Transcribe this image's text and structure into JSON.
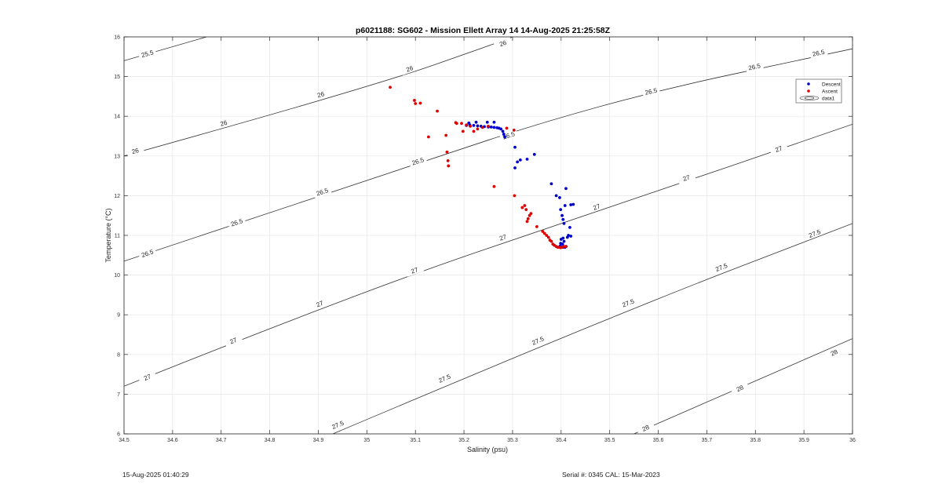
{
  "chart_data": {
    "type": "scatter",
    "title": "p6021188: SG602 - Mission Ellett Array 14 14-Aug-2025 21:25:58Z",
    "xlabel": "Salinity (psu)",
    "ylabel": "Temperature (°C)",
    "xlim": [
      34.5,
      36
    ],
    "ylim": [
      6,
      16
    ],
    "xticks": [
      "34.5",
      "34.6",
      "34.7",
      "34.8",
      "34.9",
      "35",
      "35.1",
      "35.2",
      "35.3",
      "35.4",
      "35.5",
      "35.6",
      "35.7",
      "35.8",
      "35.9",
      "36"
    ],
    "yticks": [
      "6",
      "7",
      "8",
      "9",
      "10",
      "11",
      "12",
      "13",
      "14",
      "15",
      "16"
    ],
    "grid": true,
    "legend_position": "top-right",
    "legend": [
      "Descent",
      "Ascent",
      "data1"
    ],
    "colors": {
      "descent": "#0000cc",
      "ascent": "#dd0000",
      "contour": "#333333",
      "grid": "#e6e6e6"
    },
    "series": [
      {
        "name": "Descent",
        "x": [
          35.205,
          35.212,
          35.22,
          35.228,
          35.235,
          35.242,
          35.25,
          35.256,
          35.262,
          35.268,
          35.272,
          35.276,
          35.28,
          35.282,
          35.284,
          35.262,
          35.248,
          35.225,
          35.21,
          35.305,
          35.31,
          35.316,
          35.33,
          35.345,
          35.305,
          35.38,
          35.39,
          35.397,
          35.399,
          35.402,
          35.404,
          35.406,
          35.408,
          35.41,
          35.404,
          35.42,
          35.425,
          35.4,
          35.399,
          35.398,
          35.4,
          35.402,
          35.405,
          35.408,
          35.41,
          35.413,
          35.415,
          35.418,
          35.42,
          35.406,
          35.403
        ],
        "y": [
          13.77,
          13.78,
          13.77,
          13.76,
          13.75,
          13.74,
          13.73,
          13.73,
          13.72,
          13.71,
          13.7,
          13.68,
          13.62,
          13.55,
          13.48,
          13.85,
          13.85,
          13.85,
          13.83,
          13.22,
          12.85,
          12.9,
          12.92,
          13.04,
          12.7,
          12.3,
          12.0,
          11.95,
          11.65,
          11.5,
          11.4,
          11.3,
          11.75,
          12.18,
          10.93,
          11.77,
          11.78,
          10.9,
          10.8,
          10.73,
          10.7,
          10.7,
          10.7,
          10.7,
          10.72,
          10.95,
          11.0,
          11.2,
          10.98,
          10.85,
          10.78
        ]
      },
      {
        "name": "Ascent",
        "x": [
          35.048,
          35.098,
          35.1,
          35.11,
          35.127,
          35.145,
          35.163,
          35.165,
          35.167,
          35.168,
          35.183,
          35.185,
          35.195,
          35.198,
          35.205,
          35.213,
          35.22,
          35.228,
          35.238,
          35.25,
          35.262,
          35.304,
          35.32,
          35.325,
          35.328,
          35.33,
          35.332,
          35.335,
          35.338,
          35.35,
          35.362,
          35.366,
          35.37,
          35.374,
          35.377,
          35.38,
          35.383,
          35.386,
          35.39,
          35.393,
          35.396,
          35.399,
          35.402,
          35.406,
          35.41,
          35.303,
          35.288
        ],
        "y": [
          14.73,
          14.4,
          14.32,
          14.33,
          13.48,
          14.13,
          13.52,
          13.1,
          12.88,
          12.75,
          13.84,
          13.82,
          13.82,
          13.62,
          13.78,
          13.75,
          13.62,
          13.68,
          13.72,
          13.75,
          12.23,
          12.0,
          11.7,
          11.75,
          11.65,
          11.35,
          11.42,
          11.5,
          11.55,
          11.22,
          11.1,
          11.05,
          11.0,
          10.95,
          10.88,
          10.85,
          10.78,
          10.75,
          10.72,
          10.7,
          10.7,
          10.69,
          10.7,
          10.72,
          10.72,
          13.65,
          13.7
        ]
      }
    ],
    "contours": [
      {
        "label": "25.5",
        "points": [
          [
            34.5,
            15.4
          ],
          [
            34.67,
            16.0
          ]
        ],
        "label_positions": [
          [
            34.548,
            15.58
          ]
        ]
      },
      {
        "label": "26",
        "points": [
          [
            34.5,
            13.0
          ],
          [
            35.0,
            14.7
          ],
          [
            35.28,
            15.9
          ],
          [
            35.3,
            16.0
          ]
        ],
        "label_positions": [
          [
            34.523,
            13.13
          ],
          [
            34.705,
            13.83
          ],
          [
            34.905,
            14.55
          ],
          [
            35.088,
            15.2
          ],
          [
            35.28,
            15.84
          ]
        ]
      },
      {
        "label": "26.5",
        "points": [
          [
            34.5,
            10.35
          ],
          [
            35.0,
            12.4
          ],
          [
            35.5,
            14.4
          ],
          [
            36.0,
            15.7
          ]
        ],
        "label_positions": [
          [
            34.548,
            10.55
          ],
          [
            34.732,
            11.33
          ],
          [
            34.908,
            12.1
          ],
          [
            35.105,
            12.87
          ],
          [
            35.292,
            13.52
          ],
          [
            35.585,
            14.63
          ],
          [
            35.798,
            15.25
          ],
          [
            35.93,
            15.6
          ]
        ]
      },
      {
        "label": "27",
        "points": [
          [
            34.5,
            7.2
          ],
          [
            35.0,
            9.65
          ],
          [
            35.5,
            11.7
          ],
          [
            36.0,
            13.8
          ]
        ],
        "label_positions": [
          [
            34.548,
            7.43
          ],
          [
            34.725,
            8.35
          ],
          [
            34.903,
            9.28
          ],
          [
            35.098,
            10.12
          ],
          [
            35.28,
            10.95
          ],
          [
            35.473,
            11.72
          ],
          [
            35.658,
            12.45
          ],
          [
            35.848,
            13.18
          ]
        ]
      },
      {
        "label": "27.5",
        "points": [
          [
            34.93,
            6.0
          ],
          [
            35.5,
            8.95
          ],
          [
            36.0,
            11.3
          ]
        ],
        "label_positions": [
          [
            34.94,
            6.23
          ],
          [
            35.16,
            7.4
          ],
          [
            35.352,
            8.35
          ],
          [
            35.538,
            9.3
          ],
          [
            35.73,
            10.2
          ],
          [
            35.922,
            11.05
          ]
        ]
      },
      {
        "label": "28",
        "points": [
          [
            35.55,
            6.0
          ],
          [
            36.0,
            8.4
          ]
        ],
        "label_positions": [
          [
            35.574,
            6.15
          ],
          [
            35.768,
            7.15
          ],
          [
            35.962,
            8.05
          ]
        ]
      }
    ]
  },
  "footer": {
    "timestamp": "15-Aug-2025 01:40:29",
    "serial": "Serial #: 0345  CAL: 15-Mar-2023"
  }
}
